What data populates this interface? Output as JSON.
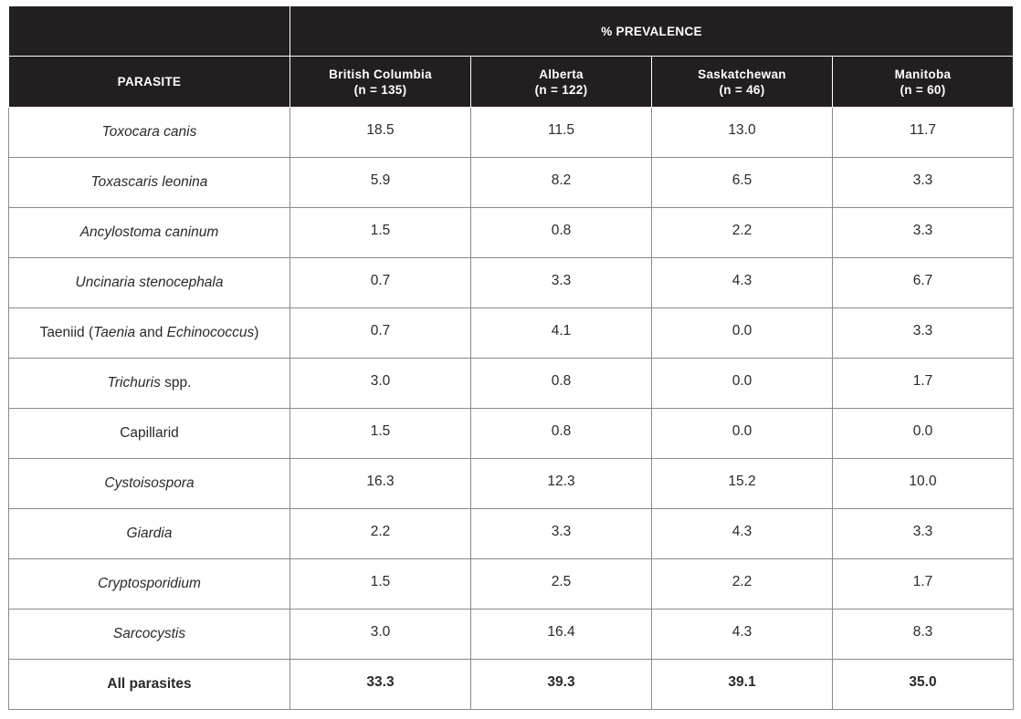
{
  "table": {
    "group_header": "% PREVALENCE",
    "parasite_header": "PARASITE",
    "columns": [
      {
        "name": "British Columbia",
        "n": "(n = 135)"
      },
      {
        "name": "Alberta",
        "n": "(n = 122)"
      },
      {
        "name": "Saskatchewan",
        "n": "(n = 46)"
      },
      {
        "name": "Manitoba",
        "n": "(n = 60)"
      }
    ],
    "rows": [
      {
        "pre": "",
        "italic": "Toxocara canis",
        "mid": "",
        "italic2": "",
        "post": "",
        "values": [
          "18.5",
          "11.5",
          "13.0",
          "11.7"
        ]
      },
      {
        "pre": "",
        "italic": "Toxascaris leonina",
        "mid": "",
        "italic2": "",
        "post": "",
        "values": [
          "5.9",
          "8.2",
          "6.5",
          "3.3"
        ]
      },
      {
        "pre": "",
        "italic": "Ancylostoma caninum",
        "mid": "",
        "italic2": "",
        "post": "",
        "values": [
          "1.5",
          "0.8",
          "2.2",
          "3.3"
        ]
      },
      {
        "pre": "",
        "italic": "Uncinaria stenocephala",
        "mid": "",
        "italic2": "",
        "post": "",
        "values": [
          "0.7",
          "3.3",
          "4.3",
          "6.7"
        ]
      },
      {
        "pre": "Taeniid (",
        "italic": "Taenia",
        "mid": " and ",
        "italic2": "Echinococcus",
        "post": ")",
        "values": [
          "0.7",
          "4.1",
          "0.0",
          "3.3"
        ]
      },
      {
        "pre": "",
        "italic": "Trichuris",
        "mid": "",
        "italic2": "",
        "post": " spp.",
        "values": [
          "3.0",
          "0.8",
          "0.0",
          "1.7"
        ]
      },
      {
        "pre": "Capillarid",
        "italic": "",
        "mid": "",
        "italic2": "",
        "post": "",
        "values": [
          "1.5",
          "0.8",
          "0.0",
          "0.0"
        ]
      },
      {
        "pre": "",
        "italic": "Cystoisospora",
        "mid": "",
        "italic2": "",
        "post": "",
        "values": [
          "16.3",
          "12.3",
          "15.2",
          "10.0"
        ]
      },
      {
        "pre": "",
        "italic": "Giardia",
        "mid": "",
        "italic2": "",
        "post": "",
        "values": [
          "2.2",
          "3.3",
          "4.3",
          "3.3"
        ]
      },
      {
        "pre": "",
        "italic": "Cryptosporidium",
        "mid": "",
        "italic2": "",
        "post": "",
        "values": [
          "1.5",
          "2.5",
          "2.2",
          "1.7"
        ]
      },
      {
        "pre": "",
        "italic": "Sarcocystis",
        "mid": "",
        "italic2": "",
        "post": "",
        "values": [
          "3.0",
          "16.4",
          "4.3",
          "8.3"
        ]
      }
    ],
    "total": {
      "label": "All parasites",
      "values": [
        "33.3",
        "39.3",
        "39.1",
        "35.0"
      ]
    }
  },
  "colors": {
    "header_bg": "#231f20",
    "header_text": "#ffffff",
    "grid": "#8a8a8a"
  }
}
